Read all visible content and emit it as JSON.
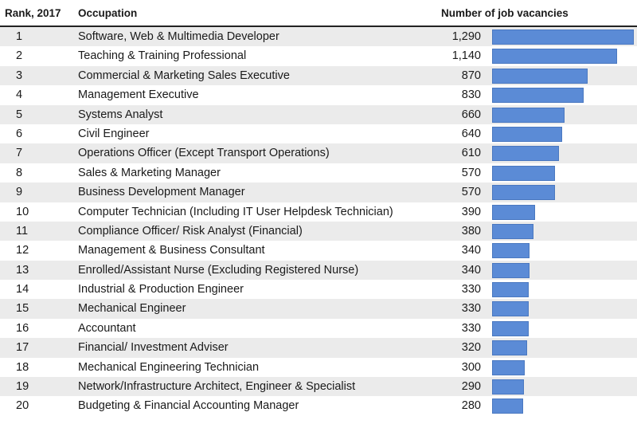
{
  "chart_data": {
    "type": "bar",
    "orientation": "horizontal",
    "columns": {
      "rank": "Rank, 2017",
      "occupation": "Occupation",
      "value": "Number of job vacancies"
    },
    "rows": [
      {
        "rank": "1",
        "occupation": "Software, Web & Multimedia Developer",
        "value": 1290,
        "value_label": "1,290"
      },
      {
        "rank": "2",
        "occupation": "Teaching & Training Professional",
        "value": 1140,
        "value_label": "1,140"
      },
      {
        "rank": "3",
        "occupation": "Commercial & Marketing Sales Executive",
        "value": 870,
        "value_label": "870"
      },
      {
        "rank": "4",
        "occupation": "Management Executive",
        "value": 830,
        "value_label": "830"
      },
      {
        "rank": "5",
        "occupation": "Systems Analyst",
        "value": 660,
        "value_label": "660"
      },
      {
        "rank": "6",
        "occupation": "Civil Engineer",
        "value": 640,
        "value_label": "640"
      },
      {
        "rank": "7",
        "occupation": "Operations Officer (Except Transport Operations)",
        "value": 610,
        "value_label": "610"
      },
      {
        "rank": "8",
        "occupation": "Sales & Marketing Manager",
        "value": 570,
        "value_label": "570"
      },
      {
        "rank": "9",
        "occupation": "Business Development Manager",
        "value": 570,
        "value_label": "570"
      },
      {
        "rank": "10",
        "occupation": "Computer Technician (Including IT User Helpdesk Technician)",
        "value": 390,
        "value_label": "390"
      },
      {
        "rank": "11",
        "occupation": "Compliance Officer/ Risk Analyst (Financial)",
        "value": 380,
        "value_label": "380"
      },
      {
        "rank": "12",
        "occupation": "Management & Business Consultant",
        "value": 340,
        "value_label": "340"
      },
      {
        "rank": "13",
        "occupation": "Enrolled/Assistant Nurse (Excluding Registered Nurse)",
        "value": 340,
        "value_label": "340"
      },
      {
        "rank": "14",
        "occupation": "Industrial & Production Engineer",
        "value": 330,
        "value_label": "330"
      },
      {
        "rank": "15",
        "occupation": "Mechanical Engineer",
        "value": 330,
        "value_label": "330"
      },
      {
        "rank": "16",
        "occupation": "Accountant",
        "value": 330,
        "value_label": "330"
      },
      {
        "rank": "17",
        "occupation": "Financial/ Investment Adviser",
        "value": 320,
        "value_label": "320"
      },
      {
        "rank": "18",
        "occupation": "Mechanical Engineering Technician",
        "value": 300,
        "value_label": "300"
      },
      {
        "rank": "19",
        "occupation": "Network/Infrastructure Architect, Engineer & Specialist",
        "value": 290,
        "value_label": "290"
      },
      {
        "rank": "20",
        "occupation": "Budgeting & Financial Accounting Manager",
        "value": 280,
        "value_label": "280"
      }
    ],
    "bar_color": "#5b8bd6",
    "stripe_color": "#ebebeb"
  }
}
